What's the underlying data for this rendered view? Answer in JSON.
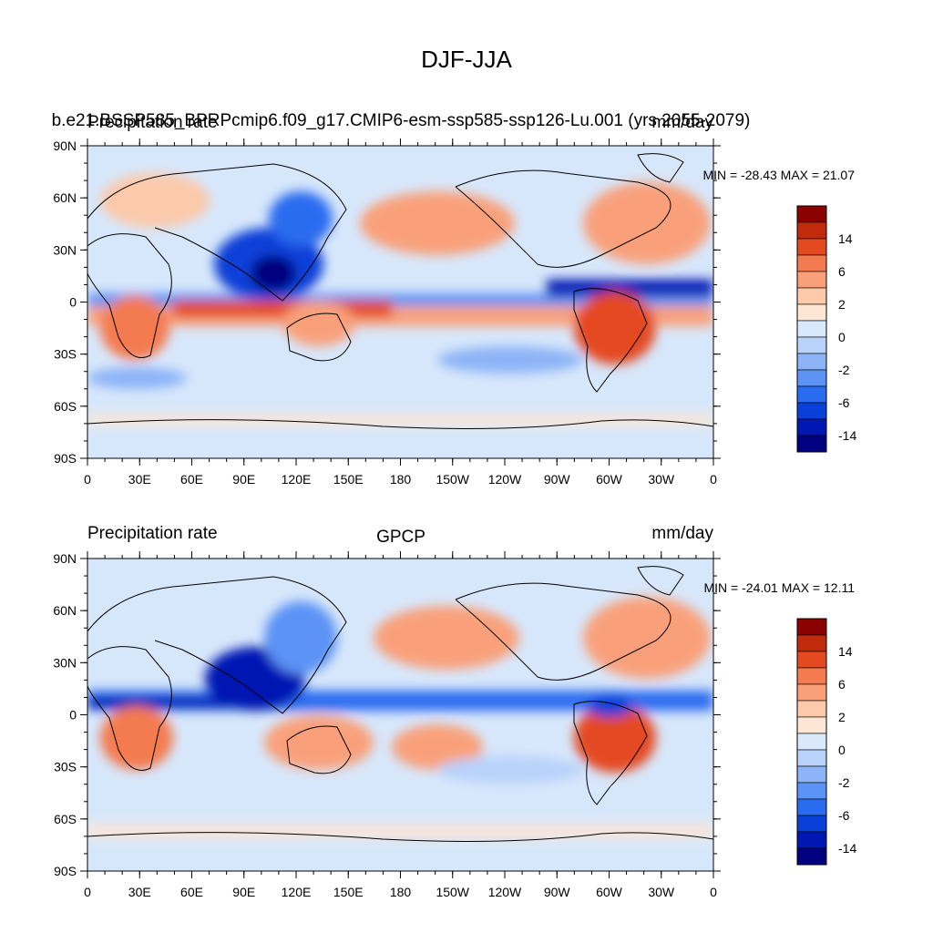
{
  "figure": {
    "main_title": "DJF-JJA"
  },
  "panels": [
    {
      "id": "model",
      "left_title": "Precipitation rate",
      "center_title": "b.e21.BSSP585_BPRPcmip6.f09_g17.CMIP6-esm-ssp585-ssp126-Lu.001 (yrs 2055-2079)",
      "right_title": "mm/day",
      "minmax": "MIN = -28.43 MAX =  21.07",
      "lat_ticks": [
        "90N",
        "60N",
        "30N",
        "0",
        "30S",
        "60S",
        "90S"
      ],
      "lon_ticks": [
        "0",
        "30E",
        "60E",
        "90E",
        "120E",
        "150E",
        "180",
        "150W",
        "120W",
        "90W",
        "60W",
        "30W",
        "0"
      ],
      "colorbar_labels": [
        "14",
        "6",
        "2",
        "0",
        "-2",
        "-6",
        "-14"
      ]
    },
    {
      "id": "obs",
      "left_title": "Precipitation rate",
      "center_title": "GPCP",
      "right_title": "mm/day",
      "minmax": "MIN = -24.01 MAX =  12.11",
      "lat_ticks": [
        "90N",
        "60N",
        "30N",
        "0",
        "30S",
        "60S",
        "90S"
      ],
      "lon_ticks": [
        "0",
        "30E",
        "60E",
        "90E",
        "120E",
        "150E",
        "180",
        "150W",
        "120W",
        "90W",
        "60W",
        "30W",
        "0"
      ],
      "colorbar_labels": [
        "14",
        "6",
        "2",
        "0",
        "-2",
        "-6",
        "-14"
      ]
    }
  ],
  "colors": {
    "palette": [
      "#000080",
      "#0017b3",
      "#0a3fd8",
      "#2a6cf0",
      "#5c93f5",
      "#8db4f7",
      "#b8d2fa",
      "#d9e8fb",
      "#fde6d4",
      "#fcc9aa",
      "#f9a07a",
      "#f47a4f",
      "#e44a20",
      "#c22a0c",
      "#8b0000"
    ],
    "background": "#d7e7fb",
    "coastline": "#000000"
  }
}
